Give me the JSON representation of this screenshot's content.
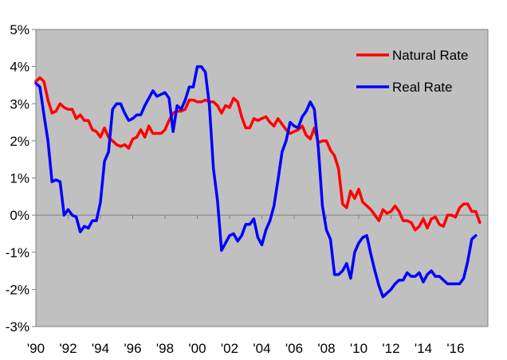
{
  "chart_data": {
    "type": "line",
    "title": "",
    "xlabel": "",
    "ylabel": "",
    "ylim": [
      -3,
      5
    ],
    "xlim": [
      1990,
      2018
    ],
    "grid": false,
    "legend_placement": "top-right",
    "plot_background": "#c0c0c0",
    "y_ticks": [
      {
        "value": 5,
        "label": "5%"
      },
      {
        "value": 4,
        "label": "4%"
      },
      {
        "value": 3,
        "label": "3%"
      },
      {
        "value": 2,
        "label": "2%"
      },
      {
        "value": 1,
        "label": "1%"
      },
      {
        "value": 0,
        "label": "0%"
      },
      {
        "value": -1,
        "label": "-1%"
      },
      {
        "value": -2,
        "label": "-2%"
      },
      {
        "value": -3,
        "label": "-3%"
      }
    ],
    "x_ticks": [
      {
        "value": 1990,
        "label": "'90"
      },
      {
        "value": 1992,
        "label": "'92"
      },
      {
        "value": 1994,
        "label": "'94"
      },
      {
        "value": 1996,
        "label": "'96"
      },
      {
        "value": 1998,
        "label": "'98"
      },
      {
        "value": 2000,
        "label": "'00"
      },
      {
        "value": 2002,
        "label": "'02"
      },
      {
        "value": 2004,
        "label": "'04"
      },
      {
        "value": 2006,
        "label": "'06"
      },
      {
        "value": 2008,
        "label": "'08"
      },
      {
        "value": 2010,
        "label": "'10"
      },
      {
        "value": 2012,
        "label": "'12"
      },
      {
        "value": 2014,
        "label": "'14"
      },
      {
        "value": 2016,
        "label": "'16"
      }
    ],
    "series": [
      {
        "name": "Natural Rate",
        "color": "#ff0000",
        "points": [
          [
            1990.0,
            3.6
          ],
          [
            1990.25,
            3.7
          ],
          [
            1990.5,
            3.6
          ],
          [
            1990.75,
            3.1
          ],
          [
            1991.0,
            2.75
          ],
          [
            1991.25,
            2.8
          ],
          [
            1991.5,
            3.0
          ],
          [
            1991.75,
            2.9
          ],
          [
            1992.0,
            2.85
          ],
          [
            1992.25,
            2.85
          ],
          [
            1992.5,
            2.6
          ],
          [
            1992.75,
            2.7
          ],
          [
            1993.0,
            2.55
          ],
          [
            1993.25,
            2.55
          ],
          [
            1993.5,
            2.3
          ],
          [
            1993.75,
            2.25
          ],
          [
            1994.0,
            2.1
          ],
          [
            1994.25,
            2.35
          ],
          [
            1994.5,
            2.1
          ],
          [
            1994.75,
            2.0
          ],
          [
            1995.0,
            1.9
          ],
          [
            1995.25,
            1.85
          ],
          [
            1995.5,
            1.9
          ],
          [
            1995.75,
            1.8
          ],
          [
            1996.0,
            2.05
          ],
          [
            1996.25,
            2.1
          ],
          [
            1996.5,
            2.3
          ],
          [
            1996.75,
            2.1
          ],
          [
            1997.0,
            2.4
          ],
          [
            1997.25,
            2.2
          ],
          [
            1997.5,
            2.2
          ],
          [
            1997.75,
            2.2
          ],
          [
            1998.0,
            2.3
          ],
          [
            1998.25,
            2.55
          ],
          [
            1998.5,
            2.75
          ],
          [
            1998.75,
            2.8
          ],
          [
            1999.0,
            2.8
          ],
          [
            1999.25,
            2.85
          ],
          [
            1999.5,
            3.1
          ],
          [
            1999.75,
            3.1
          ],
          [
            2000.0,
            3.05
          ],
          [
            2000.25,
            3.05
          ],
          [
            2000.5,
            3.1
          ],
          [
            2000.75,
            3.05
          ],
          [
            2001.0,
            3.05
          ],
          [
            2001.25,
            2.95
          ],
          [
            2001.5,
            2.75
          ],
          [
            2001.75,
            2.95
          ],
          [
            2002.0,
            2.9
          ],
          [
            2002.25,
            3.15
          ],
          [
            2002.5,
            3.05
          ],
          [
            2002.75,
            2.65
          ],
          [
            2003.0,
            2.35
          ],
          [
            2003.25,
            2.35
          ],
          [
            2003.5,
            2.6
          ],
          [
            2003.75,
            2.55
          ],
          [
            2004.0,
            2.6
          ],
          [
            2004.25,
            2.65
          ],
          [
            2004.5,
            2.5
          ],
          [
            2004.75,
            2.4
          ],
          [
            2005.0,
            2.6
          ],
          [
            2005.25,
            2.45
          ],
          [
            2005.5,
            2.3
          ],
          [
            2005.75,
            2.2
          ],
          [
            2006.0,
            2.25
          ],
          [
            2006.25,
            2.3
          ],
          [
            2006.5,
            2.4
          ],
          [
            2006.75,
            2.15
          ],
          [
            2007.0,
            2.05
          ],
          [
            2007.25,
            2.35
          ],
          [
            2007.5,
            1.95
          ],
          [
            2007.75,
            2.0
          ],
          [
            2008.0,
            2.0
          ],
          [
            2008.25,
            1.75
          ],
          [
            2008.5,
            1.6
          ],
          [
            2008.75,
            1.25
          ],
          [
            2009.0,
            0.3
          ],
          [
            2009.25,
            0.2
          ],
          [
            2009.5,
            0.65
          ],
          [
            2009.75,
            0.45
          ],
          [
            2010.0,
            0.7
          ],
          [
            2010.25,
            0.35
          ],
          [
            2010.5,
            0.25
          ],
          [
            2010.75,
            0.15
          ],
          [
            2011.0,
            0.0
          ],
          [
            2011.25,
            -0.15
          ],
          [
            2011.5,
            0.15
          ],
          [
            2011.75,
            0.05
          ],
          [
            2012.0,
            0.1
          ],
          [
            2012.25,
            0.25
          ],
          [
            2012.5,
            0.1
          ],
          [
            2012.75,
            -0.15
          ],
          [
            2013.0,
            -0.15
          ],
          [
            2013.25,
            -0.2
          ],
          [
            2013.5,
            -0.4
          ],
          [
            2013.75,
            -0.3
          ],
          [
            2014.0,
            -0.1
          ],
          [
            2014.25,
            -0.35
          ],
          [
            2014.5,
            -0.1
          ],
          [
            2014.75,
            -0.05
          ],
          [
            2015.0,
            -0.25
          ],
          [
            2015.25,
            -0.3
          ],
          [
            2015.5,
            0.0
          ],
          [
            2015.75,
            0.0
          ],
          [
            2016.0,
            -0.05
          ],
          [
            2016.25,
            0.2
          ],
          [
            2016.5,
            0.3
          ],
          [
            2016.75,
            0.3
          ],
          [
            2017.0,
            0.1
          ],
          [
            2017.25,
            0.1
          ],
          [
            2017.5,
            -0.2
          ]
        ]
      },
      {
        "name": "Real Rate",
        "color": "#0000ff",
        "points": [
          [
            1990.0,
            3.55
          ],
          [
            1990.25,
            3.45
          ],
          [
            1990.5,
            2.7
          ],
          [
            1990.75,
            2.0
          ],
          [
            1991.0,
            0.9
          ],
          [
            1991.25,
            0.95
          ],
          [
            1991.5,
            0.9
          ],
          [
            1991.75,
            0.0
          ],
          [
            1992.0,
            0.15
          ],
          [
            1992.25,
            0.0
          ],
          [
            1992.5,
            -0.05
          ],
          [
            1992.75,
            -0.45
          ],
          [
            1993.0,
            -0.3
          ],
          [
            1993.25,
            -0.35
          ],
          [
            1993.5,
            -0.15
          ],
          [
            1993.75,
            -0.15
          ],
          [
            1994.0,
            0.35
          ],
          [
            1994.25,
            1.45
          ],
          [
            1994.5,
            1.7
          ],
          [
            1994.75,
            2.85
          ],
          [
            1995.0,
            3.0
          ],
          [
            1995.25,
            3.0
          ],
          [
            1995.5,
            2.75
          ],
          [
            1995.75,
            2.55
          ],
          [
            1996.0,
            2.6
          ],
          [
            1996.25,
            2.7
          ],
          [
            1996.5,
            2.7
          ],
          [
            1996.75,
            2.95
          ],
          [
            1997.0,
            3.15
          ],
          [
            1997.25,
            3.35
          ],
          [
            1997.5,
            3.2
          ],
          [
            1997.75,
            3.25
          ],
          [
            1998.0,
            3.3
          ],
          [
            1998.25,
            3.15
          ],
          [
            1998.5,
            2.25
          ],
          [
            1998.75,
            2.95
          ],
          [
            1999.0,
            2.85
          ],
          [
            1999.25,
            3.1
          ],
          [
            1999.5,
            3.45
          ],
          [
            1999.75,
            3.45
          ],
          [
            2000.0,
            4.0
          ],
          [
            2000.25,
            4.0
          ],
          [
            2000.5,
            3.85
          ],
          [
            2000.75,
            2.95
          ],
          [
            2001.0,
            1.25
          ],
          [
            2001.25,
            0.4
          ],
          [
            2001.5,
            -0.95
          ],
          [
            2001.75,
            -0.75
          ],
          [
            2002.0,
            -0.55
          ],
          [
            2002.25,
            -0.5
          ],
          [
            2002.5,
            -0.7
          ],
          [
            2002.75,
            -0.55
          ],
          [
            2003.0,
            -0.25
          ],
          [
            2003.25,
            -0.25
          ],
          [
            2003.5,
            -0.1
          ],
          [
            2003.75,
            -0.6
          ],
          [
            2004.0,
            -0.8
          ],
          [
            2004.25,
            -0.4
          ],
          [
            2004.5,
            -0.15
          ],
          [
            2004.75,
            0.25
          ],
          [
            2005.0,
            0.95
          ],
          [
            2005.25,
            1.7
          ],
          [
            2005.5,
            2.0
          ],
          [
            2005.75,
            2.5
          ],
          [
            2006.0,
            2.4
          ],
          [
            2006.25,
            2.35
          ],
          [
            2006.5,
            2.65
          ],
          [
            2006.75,
            2.8
          ],
          [
            2007.0,
            3.05
          ],
          [
            2007.25,
            2.85
          ],
          [
            2007.5,
            1.8
          ],
          [
            2007.75,
            0.25
          ],
          [
            2008.0,
            -0.4
          ],
          [
            2008.25,
            -0.65
          ],
          [
            2008.5,
            -1.6
          ],
          [
            2008.75,
            -1.6
          ],
          [
            2009.0,
            -1.5
          ],
          [
            2009.25,
            -1.3
          ],
          [
            2009.5,
            -1.7
          ],
          [
            2009.75,
            -1.0
          ],
          [
            2010.0,
            -0.75
          ],
          [
            2010.25,
            -0.6
          ],
          [
            2010.5,
            -0.55
          ],
          [
            2010.75,
            -1.05
          ],
          [
            2011.0,
            -1.5
          ],
          [
            2011.25,
            -1.9
          ],
          [
            2011.5,
            -2.2
          ],
          [
            2011.75,
            -2.1
          ],
          [
            2012.0,
            -2.0
          ],
          [
            2012.25,
            -1.85
          ],
          [
            2012.5,
            -1.75
          ],
          [
            2012.75,
            -1.75
          ],
          [
            2013.0,
            -1.55
          ],
          [
            2013.25,
            -1.65
          ],
          [
            2013.5,
            -1.65
          ],
          [
            2013.75,
            -1.55
          ],
          [
            2014.0,
            -1.8
          ],
          [
            2014.25,
            -1.6
          ],
          [
            2014.5,
            -1.5
          ],
          [
            2014.75,
            -1.65
          ],
          [
            2015.0,
            -1.65
          ],
          [
            2015.25,
            -1.75
          ],
          [
            2015.5,
            -1.85
          ],
          [
            2015.75,
            -1.85
          ],
          [
            2016.0,
            -1.85
          ],
          [
            2016.25,
            -1.85
          ],
          [
            2016.5,
            -1.7
          ],
          [
            2016.75,
            -1.25
          ],
          [
            2017.0,
            -0.65
          ],
          [
            2017.25,
            -0.55
          ]
        ]
      }
    ]
  }
}
